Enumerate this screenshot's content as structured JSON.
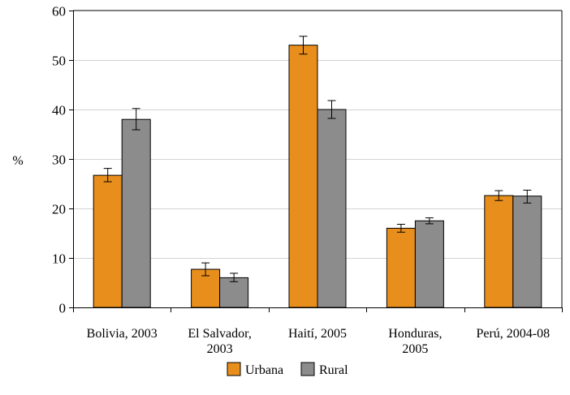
{
  "chart_data": {
    "type": "bar",
    "title": "",
    "xlabel": "",
    "ylabel": "%",
    "ylim": [
      0,
      60
    ],
    "yticks": [
      0,
      10,
      20,
      30,
      40,
      50,
      60
    ],
    "grid": true,
    "legend_position": "bottom",
    "categories": [
      [
        "Bolivia, 2003"
      ],
      [
        "El Salvador,",
        "2003"
      ],
      [
        "Haití, 2005"
      ],
      [
        "Honduras,",
        "2005"
      ],
      [
        "Perú, 2004-08"
      ]
    ],
    "series": [
      {
        "name": "Urbana",
        "color": "#e88e1c",
        "values": [
          26.7,
          7.7,
          53.0,
          16.0,
          22.6
        ],
        "error_low": [
          25.4,
          6.4,
          51.2,
          15.2,
          21.6
        ],
        "error_high": [
          28.1,
          9.0,
          54.8,
          16.8,
          23.6
        ]
      },
      {
        "name": "Rural",
        "color": "#8c8c8c",
        "values": [
          38.0,
          6.0,
          40.0,
          17.5,
          22.5
        ],
        "error_low": [
          35.9,
          5.2,
          38.2,
          16.9,
          21.1
        ],
        "error_high": [
          40.2,
          6.9,
          41.8,
          18.1,
          23.7
        ]
      }
    ]
  }
}
